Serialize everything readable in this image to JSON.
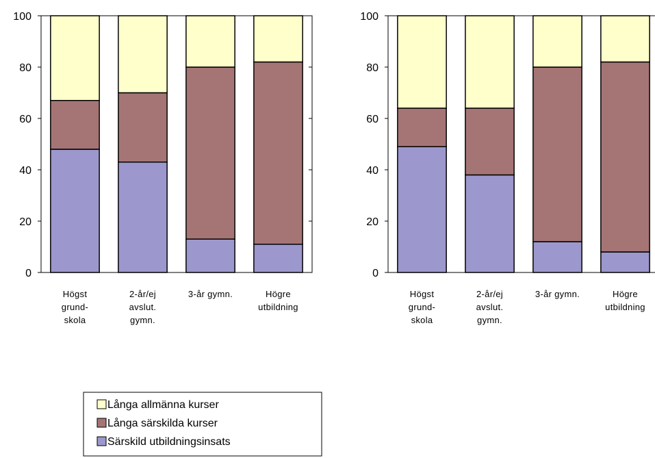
{
  "colors": {
    "Långa allmänna kurser": "#ffffcc",
    "Långa särskilda kurser": "#a57575",
    "Särskild utbildningsinsats": "#9c97cc",
    "outline": "#000000"
  },
  "legend": {
    "items": [
      "Långa allmänna kurser",
      "Långa särskilda kurser",
      "Särskild utbildningsinsats"
    ]
  },
  "chart_data": [
    {
      "type": "bar",
      "stacked": true,
      "ylim": [
        0,
        100
      ],
      "yticks": [
        0,
        20,
        40,
        60,
        80,
        100
      ],
      "grid": false,
      "categories": [
        [
          "Högst",
          "grund-",
          "skola"
        ],
        [
          "2-år/ej",
          "avslut.",
          "gymn."
        ],
        [
          "3-år gymn."
        ],
        [
          "Högre",
          "utbildning"
        ]
      ],
      "series": [
        {
          "name": "Särskild utbildningsinsats",
          "values": [
            48,
            43,
            13,
            11
          ]
        },
        {
          "name": "Långa särskilda kurser",
          "values": [
            19,
            27,
            67,
            71
          ]
        },
        {
          "name": "Långa allmänna kurser",
          "values": [
            33,
            30,
            20,
            18
          ]
        }
      ]
    },
    {
      "type": "bar",
      "stacked": true,
      "ylim": [
        0,
        100
      ],
      "yticks": [
        0,
        20,
        40,
        60,
        80,
        100
      ],
      "grid": false,
      "categories": [
        [
          "Högst",
          "grund-",
          "skola"
        ],
        [
          "2-år/ej",
          "avslut.",
          "gymn."
        ],
        [
          "3-år gymn."
        ],
        [
          "Högre",
          "utbildning"
        ]
      ],
      "series": [
        {
          "name": "Särskild utbildningsinsats",
          "values": [
            49,
            38,
            12,
            8
          ]
        },
        {
          "name": "Långa särskilda kurser",
          "values": [
            15,
            26,
            68,
            74
          ]
        },
        {
          "name": "Långa allmänna kurser",
          "values": [
            36,
            36,
            20,
            18
          ]
        }
      ]
    }
  ]
}
